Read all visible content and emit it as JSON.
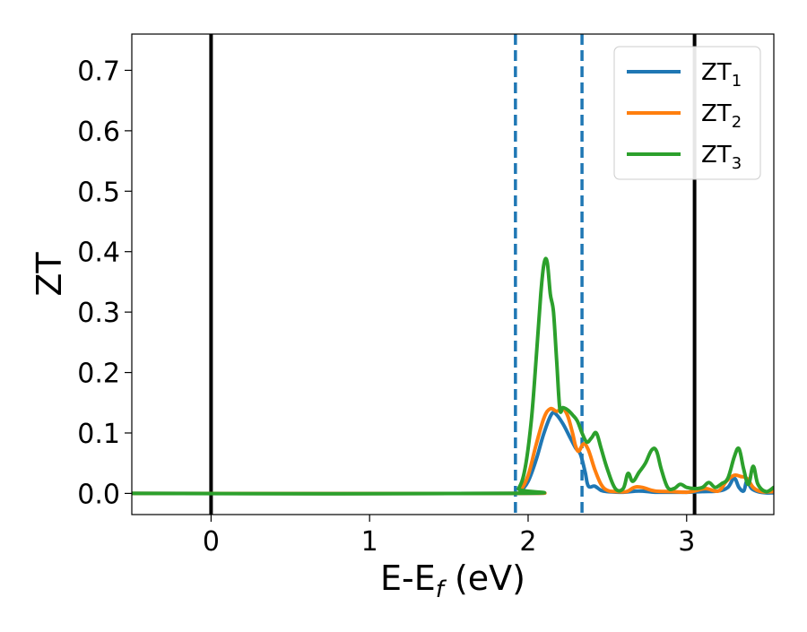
{
  "chart_data": {
    "type": "line",
    "title": "",
    "xlabel_main": "E-E",
    "xlabel_sub": "f",
    "xlabel_unit": " (eV)",
    "ylabel": "ZT",
    "xlim": [
      -0.5,
      3.55
    ],
    "ylim": [
      -0.035,
      0.76
    ],
    "xticks": [
      0,
      1,
      2,
      3
    ],
    "xtick_labels": [
      "0",
      "1",
      "2",
      "3"
    ],
    "yticks": [
      0.0,
      0.1,
      0.2,
      0.3,
      0.4,
      0.5,
      0.6,
      0.7
    ],
    "ytick_labels": [
      "0.0",
      "0.1",
      "0.2",
      "0.3",
      "0.4",
      "0.5",
      "0.6",
      "0.7"
    ],
    "grid": false,
    "legend_position": "top-right",
    "vlines": [
      {
        "x": 0.0,
        "style": "solid",
        "color": "#000000"
      },
      {
        "x": 3.05,
        "style": "solid",
        "color": "#000000"
      },
      {
        "x": 1.92,
        "style": "dashed",
        "color": "#1f77b4"
      },
      {
        "x": 2.34,
        "style": "dashed",
        "color": "#1f77b4"
      }
    ],
    "series": [
      {
        "name": "ZT",
        "sub": "1",
        "color": "#1f77b4",
        "x": [
          -0.5,
          1.9,
          1.95,
          2.0,
          2.05,
          2.1,
          2.15,
          2.18,
          2.22,
          2.26,
          2.3,
          2.33,
          2.36,
          2.38,
          2.42,
          2.46,
          2.5,
          2.6,
          2.7,
          2.8,
          2.9,
          3.0,
          3.1,
          3.2,
          3.26,
          3.3,
          3.33,
          3.36,
          3.38,
          3.41,
          3.45,
          3.5,
          3.55
        ],
        "y": [
          0.0,
          0.0,
          0.004,
          0.02,
          0.055,
          0.1,
          0.132,
          0.13,
          0.115,
          0.095,
          0.075,
          0.065,
          0.035,
          0.012,
          0.012,
          0.005,
          0.003,
          0.002,
          0.004,
          0.002,
          0.002,
          0.002,
          0.003,
          0.004,
          0.01,
          0.025,
          0.01,
          0.004,
          0.02,
          0.008,
          0.003,
          0.001,
          0.001
        ]
      },
      {
        "name": "ZT",
        "sub": "2",
        "color": "#ff7f0e",
        "x": [
          -0.5,
          1.9,
          1.95,
          2.0,
          2.05,
          2.1,
          2.14,
          2.18,
          2.22,
          2.25,
          2.28,
          2.3,
          2.32,
          2.35,
          2.38,
          2.42,
          2.46,
          2.5,
          2.55,
          2.62,
          2.67,
          2.72,
          2.8,
          2.9,
          3.0,
          3.05,
          3.12,
          3.2,
          3.25,
          3.3,
          3.34,
          3.38,
          3.42,
          3.47,
          3.55
        ],
        "y": [
          0.0,
          0.0,
          0.005,
          0.03,
          0.08,
          0.125,
          0.14,
          0.136,
          0.14,
          0.128,
          0.1,
          0.078,
          0.07,
          0.082,
          0.072,
          0.04,
          0.015,
          0.005,
          0.003,
          0.003,
          0.01,
          0.01,
          0.004,
          0.003,
          0.002,
          0.004,
          0.008,
          0.004,
          0.02,
          0.03,
          0.028,
          0.025,
          0.01,
          0.003,
          0.003
        ]
      },
      {
        "name": "ZT",
        "sub": "3",
        "color": "#2ca02c",
        "x": [
          -0.5,
          1.9,
          1.94,
          1.98,
          2.02,
          2.05,
          2.08,
          2.1,
          2.12,
          2.14,
          2.16,
          2.18,
          2.2,
          2.22,
          2.25,
          2.28,
          2.31,
          2.34,
          2.37,
          2.4,
          2.43,
          2.46,
          2.5,
          2.55,
          2.6,
          2.63,
          2.66,
          2.7,
          2.74,
          2.78,
          2.81,
          2.84,
          2.88,
          2.92,
          2.96,
          3.0,
          3.05,
          3.1,
          3.14,
          3.18,
          3.22,
          3.26,
          3.3,
          3.33,
          3.36,
          3.39,
          3.42,
          3.45,
          3.5,
          3.55
        ],
        "y": [
          0.0,
          0.0,
          0.008,
          0.04,
          0.12,
          0.22,
          0.33,
          0.38,
          0.383,
          0.33,
          0.3,
          0.22,
          0.14,
          0.142,
          0.138,
          0.13,
          0.12,
          0.1,
          0.085,
          0.092,
          0.1,
          0.075,
          0.04,
          0.008,
          0.008,
          0.033,
          0.02,
          0.035,
          0.05,
          0.072,
          0.07,
          0.04,
          0.01,
          0.008,
          0.015,
          0.01,
          0.008,
          0.01,
          0.018,
          0.01,
          0.016,
          0.025,
          0.06,
          0.074,
          0.04,
          0.015,
          0.045,
          0.015,
          0.003,
          0.01
        ]
      }
    ]
  }
}
